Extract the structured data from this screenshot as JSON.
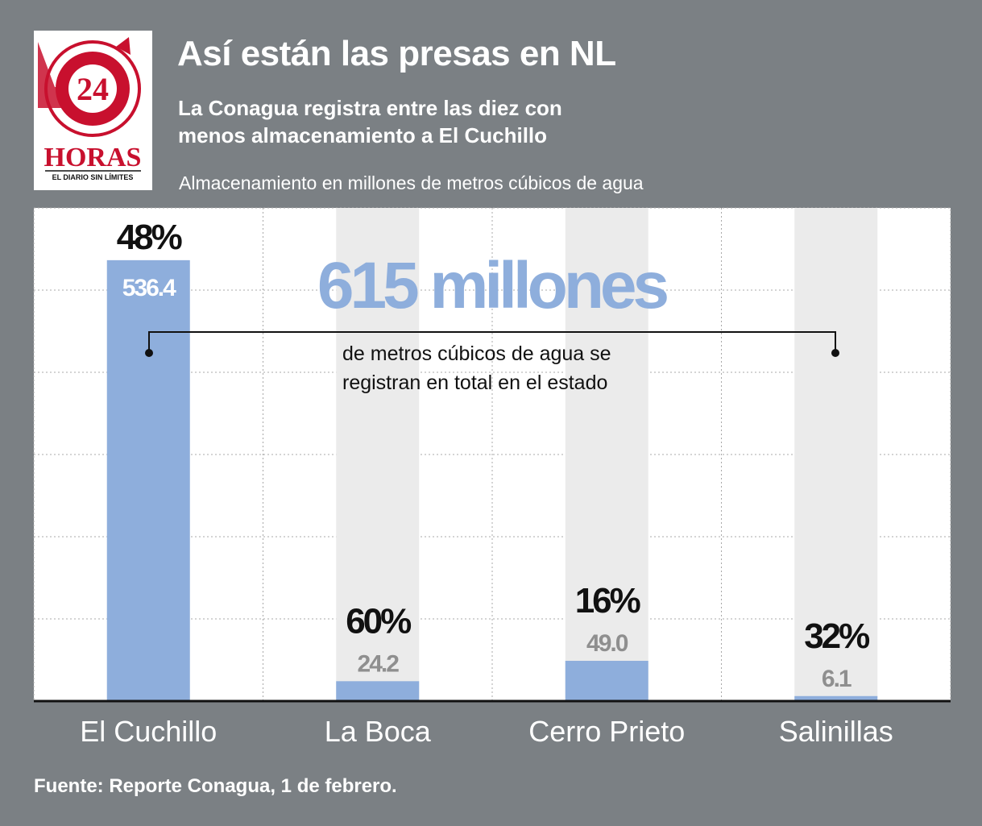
{
  "header": {
    "title": "Así están las presas en NL",
    "subtitle": "La Conagua registra entre las diez con menos almacenamiento a El Cuchillo",
    "units": "Almacenamiento en millones de metros cúbicos de agua"
  },
  "logo": {
    "number": "24",
    "name": "HORAS",
    "tagline": "EL DIARIO SIN LÍMITES",
    "icon": "24-horas-logo"
  },
  "callout": {
    "headline": "615 millones",
    "text_line1": "de metros cúbicos de agua se",
    "text_line2": "registran en total en el estado"
  },
  "source": "Fuente: Reporte Conagua, 1 de febrero.",
  "colors": {
    "background": "#7b8084",
    "bar": "#8eaedc",
    "track": "#ebebeb",
    "headline": "#8eaedc",
    "value_dark": "#8f8f8f",
    "logo_red": "#c8102e"
  },
  "chart_data": {
    "type": "bar",
    "title": "Así están las presas en NL",
    "ylabel": "Almacenamiento en millones de metros cúbicos de agua",
    "categories": [
      "El Cuchillo",
      "La Boca",
      "Cerro Prieto",
      "Salinillas"
    ],
    "values": [
      536.4,
      24.2,
      49.0,
      6.1
    ],
    "value_labels": [
      "536.4",
      "24.2",
      "49.0",
      "6.1"
    ],
    "percentages": [
      "48%",
      "60%",
      "16%",
      "32%"
    ],
    "ylim": [
      0,
      600
    ],
    "grid": true,
    "legend": "none"
  }
}
